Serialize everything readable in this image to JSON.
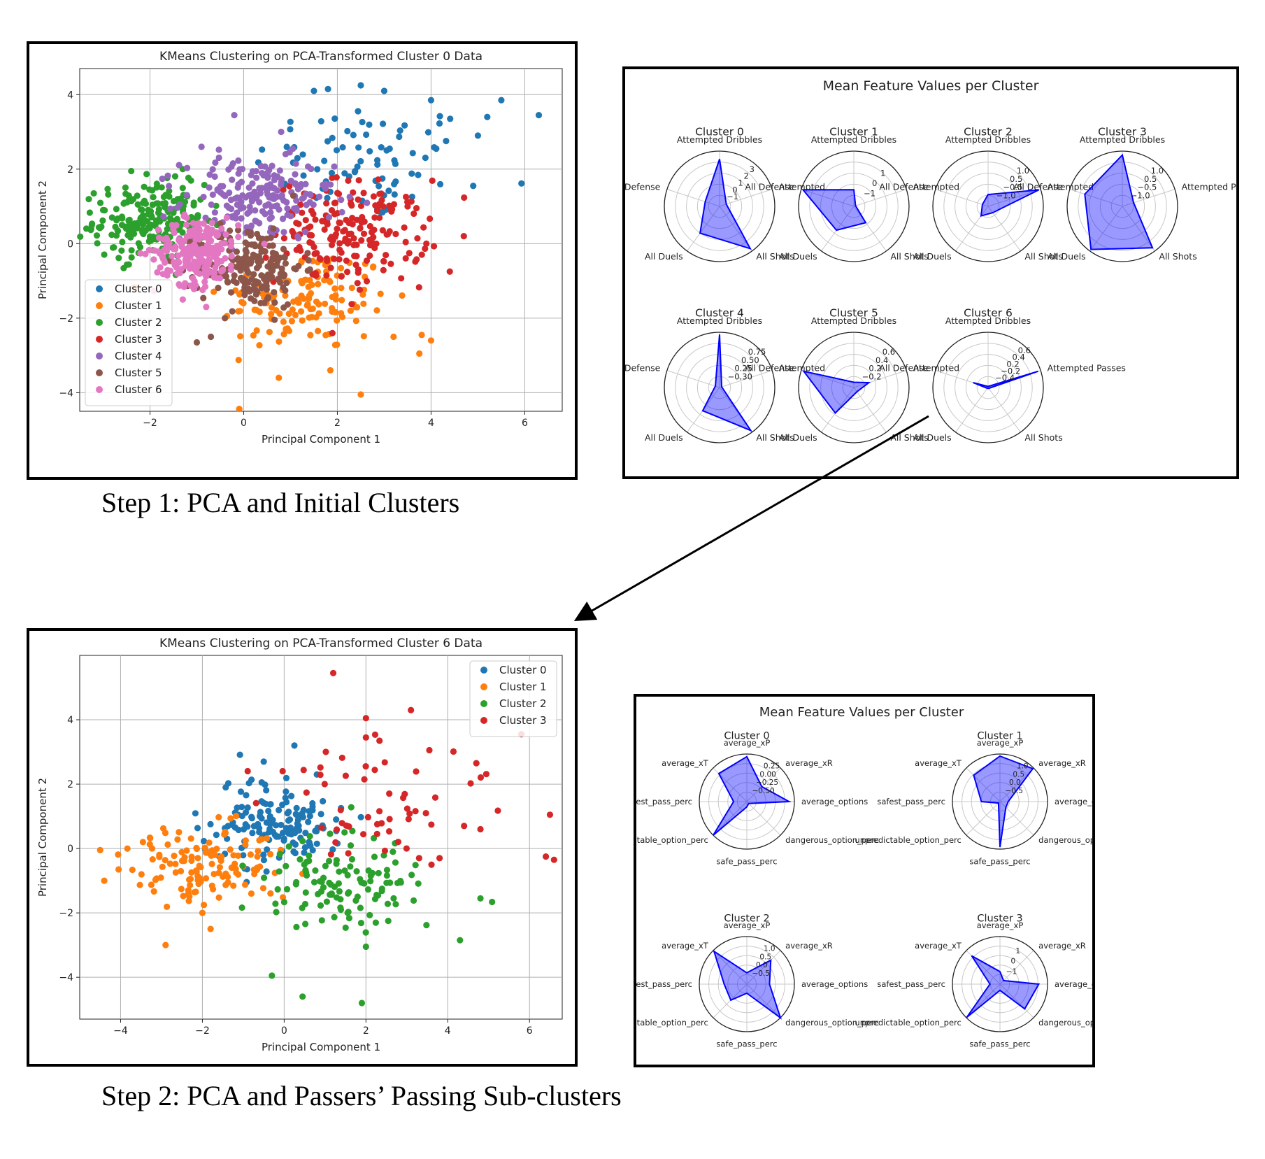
{
  "captions": {
    "step1": "Step 1: PCA and Initial Clusters",
    "step2": "Step 2: PCA and Passers’ Passing Sub-clusters"
  },
  "chart_data": [
    {
      "type": "scatter",
      "title": "KMeans Clustering on PCA-Transformed Cluster 0 Data",
      "xlabel": "Principal Component 1",
      "ylabel": "Principal Component 2",
      "xlim": [
        -3.5,
        6.8
      ],
      "ylim": [
        -4.5,
        4.7
      ],
      "xticks": [
        -2,
        0,
        2,
        4,
        6
      ],
      "yticks": [
        -4,
        -2,
        0,
        2,
        4
      ],
      "grid": true,
      "legend_position": "lower-left",
      "series": [
        {
          "name": "Cluster 0",
          "color": "#1f77b4",
          "clusters": [
            {
              "cx": 2.6,
              "cy": 2.2,
              "sx": 1.2,
              "sy": 0.8,
              "n": 80
            }
          ],
          "points": [
            [
              6.3,
              3.45
            ],
            [
              5.5,
              3.85
            ],
            [
              5.2,
              3.4
            ],
            [
              5.0,
              2.9
            ],
            [
              4.9,
              1.55
            ],
            [
              4.0,
              3.85
            ],
            [
              2.5,
              4.25
            ],
            [
              1.8,
              4.15
            ],
            [
              1.5,
              4.1
            ],
            [
              3.0,
              4.1
            ]
          ]
        },
        {
          "name": "Cluster 1",
          "color": "#ff7f0e",
          "clusters": [
            {
              "cx": 1.3,
              "cy": -1.5,
              "sx": 0.9,
              "sy": 0.7,
              "n": 140
            }
          ],
          "points": [
            [
              2.5,
              -4.05
            ],
            [
              3.75,
              -2.95
            ],
            [
              4.0,
              -2.6
            ],
            [
              0.75,
              -3.6
            ],
            [
              1.85,
              -3.4
            ],
            [
              3.2,
              -2.5
            ],
            [
              3.8,
              -2.45
            ]
          ]
        },
        {
          "name": "Cluster 2",
          "color": "#2ca02c",
          "clusters": [
            {
              "cx": -2.0,
              "cy": 0.6,
              "sx": 0.6,
              "sy": 0.5,
              "n": 220
            }
          ],
          "points": [
            [
              -3.2,
              1.35
            ],
            [
              -2.4,
              1.95
            ],
            [
              -1.3,
              2.0
            ],
            [
              -3.0,
              0.9
            ]
          ]
        },
        {
          "name": "Cluster 3",
          "color": "#d62728",
          "clusters": [
            {
              "cx": 2.3,
              "cy": 0.3,
              "sx": 0.8,
              "sy": 0.7,
              "n": 190
            }
          ],
          "points": [
            [
              4.4,
              -0.75
            ],
            [
              3.9,
              0.0
            ],
            [
              3.5,
              1.0
            ]
          ]
        },
        {
          "name": "Cluster 4",
          "color": "#9467bd",
          "clusters": [
            {
              "cx": 0.3,
              "cy": 1.2,
              "sx": 0.8,
              "sy": 0.55,
              "n": 200
            }
          ],
          "points": [
            [
              -0.2,
              3.45
            ],
            [
              -0.9,
              2.6
            ],
            [
              0.8,
              3.0
            ]
          ]
        },
        {
          "name": "Cluster 5",
          "color": "#8c564b",
          "clusters": [
            {
              "cx": 0.15,
              "cy": -0.6,
              "sx": 0.55,
              "sy": 0.55,
              "n": 200
            }
          ],
          "points": [
            [
              -1.0,
              -2.65
            ],
            [
              -0.7,
              -2.5
            ],
            [
              -0.4,
              -2.0
            ]
          ]
        },
        {
          "name": "Cluster 6",
          "color": "#e377c2",
          "clusters": [
            {
              "cx": -1.0,
              "cy": -0.2,
              "sx": 0.45,
              "sy": 0.45,
              "n": 220
            }
          ],
          "points": [
            [
              -1.3,
              -1.5
            ],
            [
              -0.8,
              -1.7
            ]
          ]
        }
      ]
    },
    {
      "type": "radar",
      "title": "Mean Feature Values per Cluster",
      "axes": [
        "Attempted Dribbles",
        "Attempted Passes",
        "All Shots",
        "All Duels",
        "All Defense"
      ],
      "axis_display": [
        "Attempted Dribbles",
        "Attempted",
        "All Shots",
        "All Duels",
        "All Defense"
      ],
      "subplots": [
        {
          "name": "Cluster 0",
          "rlim": [
            -2,
            3.5
          ],
          "rticks": [
            "−1",
            "0",
            "1",
            "2",
            "3"
          ],
          "values": [
            2.7,
            -1.3,
            3.2,
            1.3,
            -0.5
          ]
        },
        {
          "name": "Cluster 1",
          "rlim": [
            -1.5,
            1.5
          ],
          "rticks": [
            "−1",
            "0",
            "1"
          ],
          "values": [
            -0.6,
            -1.4,
            -0.4,
            0.1,
            1.4
          ]
        },
        {
          "name": "Cluster 2",
          "rlim": [
            -1.6,
            1.2
          ],
          "rticks": [
            "−1.0",
            "−0.5",
            "0.5",
            "1.0"
          ],
          "values": [
            -1.0,
            1.1,
            -1.2,
            -1.0,
            -1.3
          ]
        },
        {
          "name": "Cluster 3",
          "rlim": [
            -1.6,
            1.2
          ],
          "rticks": [
            "−1.0",
            "−0.5",
            "0.5",
            "1.0"
          ],
          "values": [
            1.0,
            -1.0,
            1.0,
            1.1,
            0.4
          ]
        },
        {
          "name": "Cluster 4",
          "rlim": [
            -0.4,
            0.85
          ],
          "rticks": [
            "−0.30",
            "0.25",
            "0.50",
            "0.75"
          ],
          "values": [
            0.8,
            -0.35,
            0.8,
            0.25,
            -0.3
          ]
        },
        {
          "name": "Cluster 5",
          "rlim": [
            -0.4,
            0.65
          ],
          "rticks": [
            "−0.2",
            "0.2",
            "0.4",
            "0.6"
          ],
          "values": [
            -0.3,
            -0.1,
            -0.3,
            0.2,
            0.6
          ]
        },
        {
          "name": "Cluster 6",
          "rlim": [
            -0.4,
            0.65
          ],
          "rticks": [
            "−0.4",
            "−0.2",
            "0.2",
            "0.4",
            "0.6"
          ],
          "values": [
            -0.38,
            0.6,
            -0.38,
            -0.38,
            -0.1
          ]
        }
      ],
      "extra_labels": {
        "cluster3_passes": "Attempted Passes",
        "cluster6_passes": "Attempted Passes"
      }
    },
    {
      "type": "scatter",
      "title": "KMeans Clustering on PCA-Transformed Cluster 6 Data",
      "xlabel": "Principal Component 1",
      "ylabel": "Principal Component 2",
      "xlim": [
        -5,
        6.8
      ],
      "ylim": [
        -5.3,
        6
      ],
      "xticks": [
        -4,
        -2,
        0,
        2,
        4,
        6
      ],
      "yticks": [
        -4,
        -2,
        0,
        2,
        4
      ],
      "grid": true,
      "legend_position": "upper-right",
      "series": [
        {
          "name": "Cluster 0",
          "color": "#1f77b4",
          "clusters": [
            {
              "cx": -0.3,
              "cy": 0.8,
              "sx": 0.8,
              "sy": 0.65,
              "n": 150
            }
          ],
          "points": [
            [
              0.25,
              3.2
            ],
            [
              0.8,
              2.3
            ],
            [
              -0.5,
              2.7
            ]
          ]
        },
        {
          "name": "Cluster 1",
          "color": "#ff7f0e",
          "clusters": [
            {
              "cx": -1.9,
              "cy": -0.5,
              "sx": 1.0,
              "sy": 0.6,
              "n": 130
            }
          ],
          "points": [
            [
              -4.5,
              -0.05
            ],
            [
              -4.4,
              -1.0
            ],
            [
              -2.9,
              -3.0
            ],
            [
              -2.0,
              -2.0
            ],
            [
              -1.8,
              -2.5
            ]
          ]
        },
        {
          "name": "Cluster 2",
          "color": "#2ca02c",
          "clusters": [
            {
              "cx": 1.5,
              "cy": -1.1,
              "sx": 0.95,
              "sy": 0.7,
              "n": 120
            }
          ],
          "points": [
            [
              -0.3,
              -3.95
            ],
            [
              0.45,
              -4.6
            ],
            [
              1.9,
              -4.8
            ],
            [
              4.3,
              -2.85
            ],
            [
              4.8,
              -1.55
            ],
            [
              2.0,
              -3.05
            ]
          ]
        },
        {
          "name": "Cluster 3",
          "color": "#d62728",
          "clusters": [
            {
              "cx": 2.4,
              "cy": 1.6,
              "sx": 1.2,
              "sy": 1.1,
              "n": 55
            }
          ],
          "points": [
            [
              1.2,
              5.45
            ],
            [
              3.1,
              4.3
            ],
            [
              5.8,
              3.55
            ],
            [
              6.5,
              1.05
            ],
            [
              6.4,
              -0.25
            ],
            [
              6.6,
              -0.35
            ],
            [
              4.7,
              2.65
            ],
            [
              2.0,
              4.05
            ],
            [
              2.0,
              3.45
            ],
            [
              4.8,
              0.6
            ],
            [
              4.4,
              0.7
            ],
            [
              3.3,
              -0.3
            ],
            [
              3.8,
              -0.3
            ]
          ]
        }
      ]
    },
    {
      "type": "radar",
      "title": "Mean Feature Values per Cluster",
      "axes": [
        "average_xP",
        "average_xR",
        "average_options",
        "dangerous_option_perc",
        "safe_pass_perc",
        "unpredictable_option_perc",
        "safest_pass_perc",
        "average_xT"
      ],
      "axis_display": [
        "average_xP",
        "average_xR",
        "average_options",
        "dangerous_option_perc",
        "safe_pass_perc",
        "unpredictable_option_perc",
        "safest_pass_perc",
        "average_xT"
      ],
      "subplots": [
        {
          "name": "Cluster 0",
          "rlim": [
            -0.6,
            0.3
          ],
          "rticks": [
            "−0.50",
            "−0.25",
            "0.00",
            "0.25"
          ],
          "values": [
            0.25,
            -0.2,
            0.2,
            -0.55,
            -0.5,
            0.3,
            -0.35,
            0.15
          ]
        },
        {
          "name": "Cluster 1",
          "rlim": [
            -1.2,
            1.1
          ],
          "rticks": [
            "−0.5",
            "0.0",
            "0.5",
            "1.0"
          ],
          "values": [
            1.0,
            1.05,
            -0.8,
            -0.8,
            1.0,
            -1.1,
            -0.3,
            0.6
          ]
        },
        {
          "name": "Cluster 2",
          "rlim": [
            -1.0,
            1.1
          ],
          "rticks": [
            "−0.5",
            "0.0",
            "0.5",
            "1.0"
          ],
          "values": [
            -0.5,
            0.5,
            0.0,
            1.1,
            -0.6,
            0.0,
            0.0,
            1.05
          ]
        },
        {
          "name": "Cluster 3",
          "rlim": [
            -2.3,
            1.5
          ],
          "rticks": [
            "−1",
            "0",
            "1"
          ],
          "values": [
            -1.3,
            -1.9,
            0.8,
            0.5,
            -1.8,
            1.45,
            -1.5,
            0.9
          ]
        }
      ]
    }
  ]
}
